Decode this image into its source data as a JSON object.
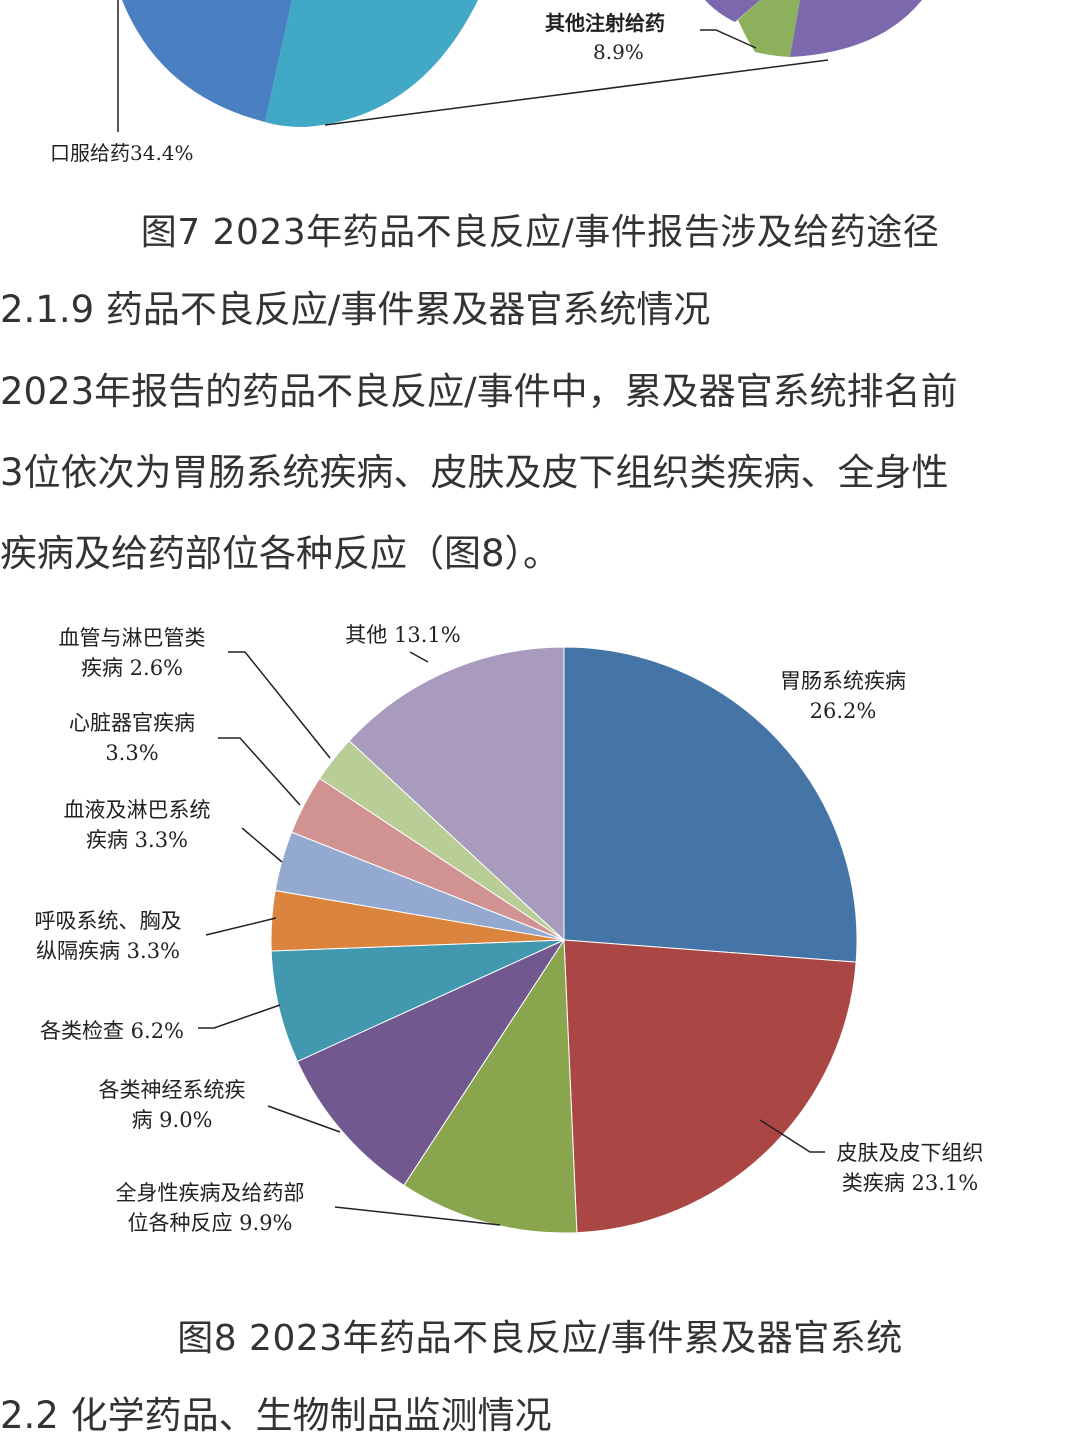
{
  "fig7": {
    "label_other_injection": "其他注射给药",
    "label_other_injection_pct": "8.9%",
    "label_oral": "口服给药34.4%",
    "caption": "图7 2023年药品不良反应/事件报告涉及给药途径"
  },
  "section_219": {
    "heading": "2.1.9 药品不良反应/事件累及器官系统情况",
    "para_lines": [
      "2023年报告的药品不良反应/事件中，累及器官系统排名前",
      "3位依次为胃肠系统疾病、皮肤及皮下组织类疾病、全身性",
      "疾病及给药部位各种反应（图8）。"
    ]
  },
  "chart_data": {
    "type": "pie",
    "slices": [
      {
        "label_lines": [
          "胃肠系统疾病",
          "26.2%"
        ],
        "value": 26.2,
        "color": "#4574a7"
      },
      {
        "label_lines": [
          "皮肤及皮下组织",
          "类疾病 23.1%"
        ],
        "value": 23.1,
        "color": "#aa4643"
      },
      {
        "label_lines": [
          "全身性疾病及给药部",
          "位各种反应 9.9%"
        ],
        "value": 9.9,
        "color": "#89a54e"
      },
      {
        "label_lines": [
          "各类神经系统疾",
          "病 9.0%"
        ],
        "value": 9.0,
        "color": "#71588f"
      },
      {
        "label_lines": [
          "各类检查 6.2%"
        ],
        "value": 6.2,
        "color": "#4198af"
      },
      {
        "label_lines": [
          "呼吸系统、胸及",
          "纵隔疾病 3.3%"
        ],
        "value": 3.3,
        "color": "#db843d"
      },
      {
        "label_lines": [
          "血液及淋巴系统",
          "疾病 3.3%"
        ],
        "value": 3.3,
        "color": "#93a9cf"
      },
      {
        "label_lines": [
          "心脏器官疾病",
          "3.3%"
        ],
        "value": 3.3,
        "color": "#d19392"
      },
      {
        "label_lines": [
          "血管与淋巴管类",
          "疾病 2.6%"
        ],
        "value": 2.6,
        "color": "#b9cd96"
      },
      {
        "label_lines": [
          "其他 13.1%"
        ],
        "value": 13.1,
        "color": "#a99bbd"
      }
    ],
    "title": "图8 2023年药品不良反应/事件累及器官系统"
  },
  "section_22": {
    "heading": "2.2 化学药品、生物制品监测情况"
  }
}
